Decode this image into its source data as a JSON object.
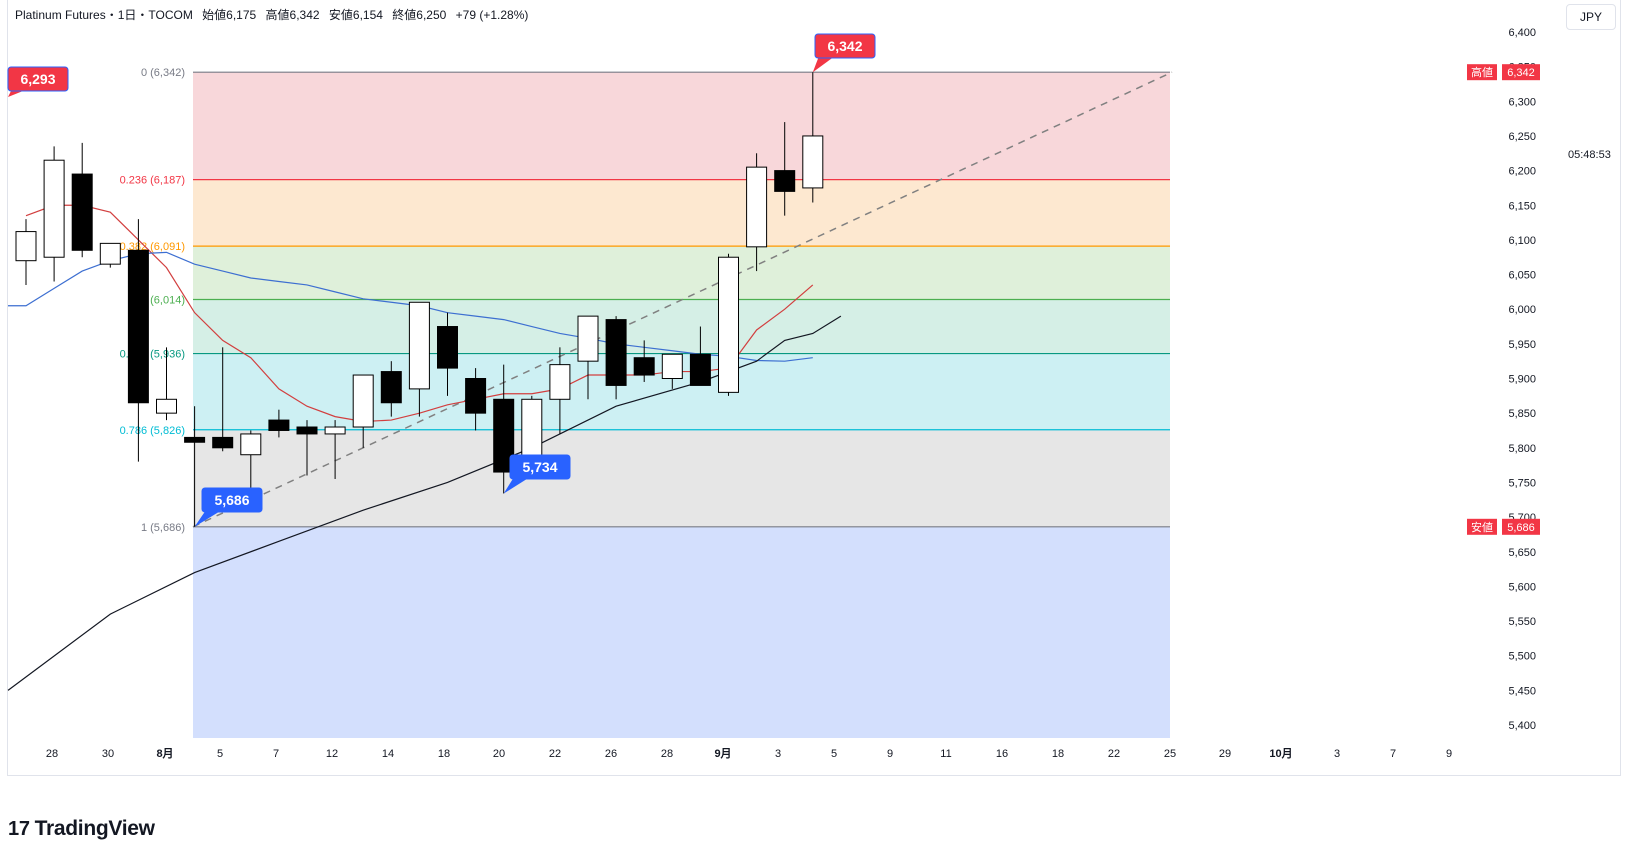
{
  "header": {
    "symbol": "Platinum Futures・1日・TOCOM",
    "open": "始値6,175",
    "high": "高値6,342",
    "low": "安値6,154",
    "close": "終値6,250",
    "change": "+79 (+1.28%)"
  },
  "currency": "JPY",
  "countdown": "05:48:53",
  "logo": {
    "mark": "17",
    "text": "TradingView"
  },
  "colors": {
    "up": "#ffffff",
    "down": "#000000",
    "ma_red": "#d23f3f",
    "ma_blue": "#3d6fd1",
    "ma_black": "#131722",
    "label_red": "#f23645",
    "label_blue": "#2962ff"
  },
  "chart_data": {
    "type": "candlestick",
    "y_min": 5380,
    "y_max": 6410,
    "y_ticks": [
      "6,400",
      "6,350",
      "6,300",
      "6,250",
      "6,200",
      "6,150",
      "6,100",
      "6,050",
      "6,000",
      "5,950",
      "5,900",
      "5,850",
      "5,800",
      "5,750",
      "5,700",
      "5,650",
      "5,600",
      "5,550",
      "5,500",
      "5,450",
      "5,400"
    ],
    "x_ticks": [
      "28",
      "30",
      "8月",
      "5",
      "7",
      "12",
      "14",
      "18",
      "20",
      "22",
      "26",
      "28",
      "9月",
      "3",
      "5",
      "9",
      "11",
      "16",
      "18",
      "22",
      "25",
      "29",
      "10月",
      "3",
      "7",
      "9"
    ],
    "x_tick_bold": [
      "8月",
      "9月",
      "10月"
    ],
    "candles": [
      {
        "o": 6070,
        "h": 6130,
        "l": 6035,
        "c": 6112
      },
      {
        "o": 6075,
        "h": 6235,
        "l": 6040,
        "c": 6215
      },
      {
        "o": 6195,
        "h": 6240,
        "l": 6075,
        "c": 6085
      },
      {
        "o": 6065,
        "h": 6095,
        "l": 6060,
        "c": 6095
      },
      {
        "o": 6085,
        "h": 6130,
        "l": 5780,
        "c": 5865
      },
      {
        "o": 5850,
        "h": 5945,
        "l": 5840,
        "c": 5870
      },
      {
        "o": 5815,
        "h": 5860,
        "l": 5686,
        "c": 5808
      },
      {
        "o": 5815,
        "h": 5945,
        "l": 5795,
        "c": 5800
      },
      {
        "o": 5790,
        "h": 5825,
        "l": 5740,
        "c": 5820
      },
      {
        "o": 5840,
        "h": 5855,
        "l": 5815,
        "c": 5825
      },
      {
        "o": 5830,
        "h": 5840,
        "l": 5760,
        "c": 5820
      },
      {
        "o": 5820,
        "h": 5840,
        "l": 5755,
        "c": 5830
      },
      {
        "o": 5830,
        "h": 5905,
        "l": 5800,
        "c": 5905
      },
      {
        "o": 5910,
        "h": 5925,
        "l": 5845,
        "c": 5865
      },
      {
        "o": 5885,
        "h": 6010,
        "l": 5845,
        "c": 6010
      },
      {
        "o": 5975,
        "h": 5995,
        "l": 5875,
        "c": 5915
      },
      {
        "o": 5900,
        "h": 5915,
        "l": 5825,
        "c": 5850
      },
      {
        "o": 5870,
        "h": 5920,
        "l": 5734,
        "c": 5765
      },
      {
        "o": 5780,
        "h": 5875,
        "l": 5775,
        "c": 5870
      },
      {
        "o": 5870,
        "h": 5945,
        "l": 5820,
        "c": 5920
      },
      {
        "o": 5925,
        "h": 5990,
        "l": 5870,
        "c": 5990
      },
      {
        "o": 5985,
        "h": 5990,
        "l": 5870,
        "c": 5890
      },
      {
        "o": 5930,
        "h": 5955,
        "l": 5895,
        "c": 5905
      },
      {
        "o": 5900,
        "h": 5935,
        "l": 5885,
        "c": 5935
      },
      {
        "o": 5935,
        "h": 5975,
        "l": 5890,
        "c": 5890
      },
      {
        "o": 5880,
        "h": 6080,
        "l": 5875,
        "c": 6075
      },
      {
        "o": 6090,
        "h": 6225,
        "l": 6055,
        "c": 6205
      },
      {
        "o": 6200,
        "h": 6270,
        "l": 6135,
        "c": 6170
      },
      {
        "o": 6175,
        "h": 6342,
        "l": 6154,
        "c": 6250
      }
    ],
    "ma_red": [
      6135,
      6150,
      6150,
      6140,
      6100,
      6060,
      5995,
      5955,
      5930,
      5885,
      5860,
      5845,
      5838,
      5840,
      5850,
      5862,
      5870,
      5878,
      5878,
      5885,
      5905,
      5905,
      5905,
      5910,
      5910,
      5915,
      5970,
      6000,
      6035
    ],
    "ma_blue": [
      6005,
      6030,
      6055,
      6070,
      6080,
      6082,
      6065,
      6055,
      6045,
      6040,
      6035,
      6025,
      6015,
      6010,
      6005,
      5995,
      5990,
      5985,
      5975,
      5965,
      5958,
      5950,
      5945,
      5940,
      5935,
      5932,
      5926,
      5925,
      5930
    ],
    "ma_black_path": [
      [
        0,
        5450
      ],
      [
        3,
        5560
      ],
      [
        6,
        5620
      ],
      [
        9,
        5665
      ],
      [
        12,
        5710
      ],
      [
        15,
        5750
      ],
      [
        18,
        5800
      ],
      [
        21,
        5860
      ],
      [
        24,
        5895
      ],
      [
        26,
        5925
      ],
      [
        27,
        5955
      ],
      [
        28,
        5965
      ],
      [
        29,
        5990
      ]
    ],
    "fib": {
      "levels": [
        {
          "ratio": "0",
          "price": 6342,
          "label": "0 (6,342)",
          "color": "#787b86",
          "fill": "#f8d7da"
        },
        {
          "ratio": "0.236",
          "price": 6187,
          "label": "0.236 (6,187)",
          "color": "#f23645",
          "fill": "#fde8d0"
        },
        {
          "ratio": "0.382",
          "price": 6091,
          "label": "0.382 (6,091)",
          "color": "#ff9800",
          "fill": "#dff0da"
        },
        {
          "ratio": "0.5",
          "price": 6014,
          "label": "0.5 (6,014)",
          "color": "#4caf50",
          "fill": "#d5efe6"
        },
        {
          "ratio": "0.618",
          "price": 5936,
          "label": "0.618 (5,936)",
          "color": "#089981",
          "fill": "#cdf0f3"
        },
        {
          "ratio": "0.786",
          "price": 5826,
          "label": "0.786 (5,826)",
          "color": "#00bcd4",
          "fill": "#e6e6e6"
        },
        {
          "ratio": "1",
          "price": 5686,
          "label": "1 (5,686)",
          "color": "#787b86",
          "fill": "#d3dffd"
        }
      ]
    },
    "price_labels": [
      {
        "text": "6,293",
        "kind": "high",
        "price": 6293,
        "at": "left-edge"
      },
      {
        "text": "6,342",
        "kind": "high",
        "price": 6342,
        "at": "last-candle"
      },
      {
        "text": "5,686",
        "kind": "low",
        "price": 5686,
        "at": "candle-6"
      },
      {
        "text": "5,734",
        "kind": "low",
        "price": 5734,
        "at": "candle-17"
      }
    ],
    "axis_tags": [
      {
        "name": "高値",
        "value": "6,342",
        "price": 6342
      },
      {
        "name": "安値",
        "value": "5,686",
        "price": 5686
      }
    ]
  }
}
